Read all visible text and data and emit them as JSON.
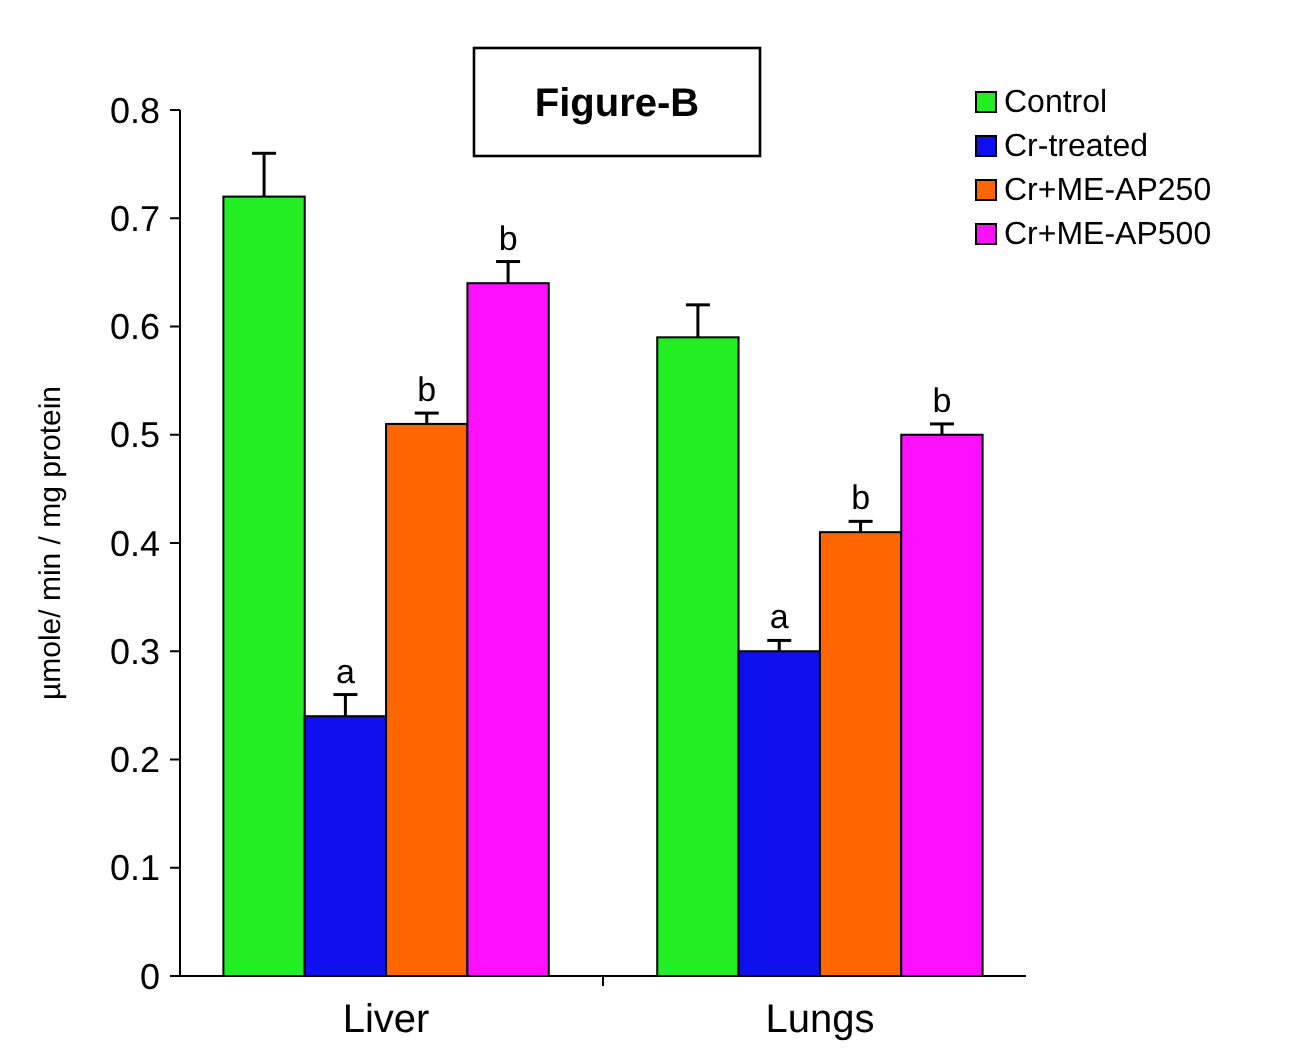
{
  "chart_data": {
    "type": "bar",
    "title": "Figure-B",
    "ylabel": "µmole/ min / mg protein",
    "categories": [
      "Liver",
      "Lungs"
    ],
    "series": [
      {
        "name": "Control",
        "color": "#22ee22",
        "values": [
          0.72,
          0.59
        ],
        "errors": [
          [
            0.72,
            0.76
          ],
          [
            0.59,
            0.62
          ]
        ]
      },
      {
        "name": "Cr-treated",
        "color": "#1010ee",
        "values": [
          0.24,
          0.3
        ],
        "errors": [
          [
            0.24,
            0.26
          ],
          [
            0.3,
            0.31
          ]
        ],
        "value_labels": [
          "a",
          "a"
        ]
      },
      {
        "name": "Cr+ME-AP250",
        "color": "#ff6600",
        "values": [
          0.51,
          0.41
        ],
        "errors": [
          [
            0.51,
            0.52
          ],
          [
            0.41,
            0.42
          ]
        ],
        "value_labels": [
          "b",
          "b"
        ]
      },
      {
        "name": "Cr+ME-AP500",
        "color": "#ff11ff",
        "values": [
          0.64,
          0.5
        ],
        "errors": [
          [
            0.64,
            0.66
          ],
          [
            0.5,
            0.51
          ]
        ],
        "value_labels": [
          "b",
          "b"
        ]
      }
    ],
    "ylim": [
      0,
      0.8
    ],
    "yticks": [
      0,
      0.1,
      0.2,
      0.3,
      0.4,
      0.5,
      0.6,
      0.7,
      0.8
    ],
    "legend": "top right",
    "grid": false
  }
}
